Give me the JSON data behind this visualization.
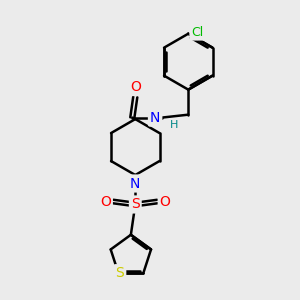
{
  "background_color": "#ebebeb",
  "atom_colors": {
    "C": "#000000",
    "N": "#0000ff",
    "O": "#ff0000",
    "S_sulfonyl": "#ff0000",
    "S_thiophene": "#cccc00",
    "Cl": "#00bb00",
    "H": "#008888"
  },
  "bond_color": "#000000",
  "bond_width": 1.8,
  "fig_bg": "#ebebeb"
}
